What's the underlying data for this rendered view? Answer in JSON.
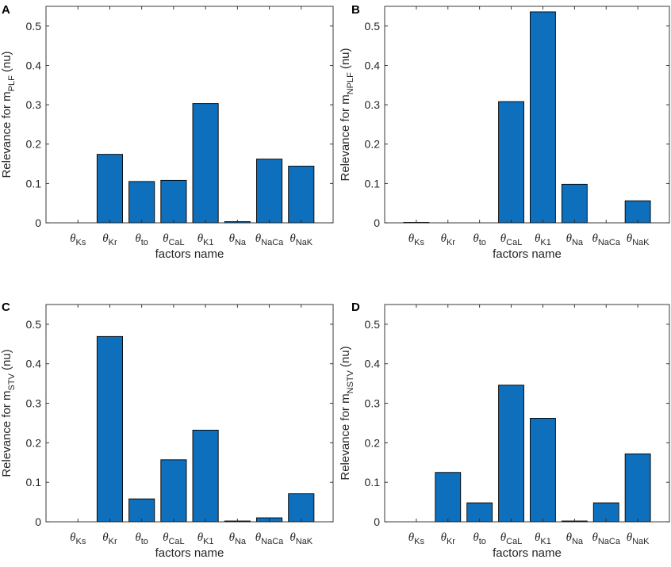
{
  "figure": {
    "panels": [
      "A",
      "B",
      "C",
      "D"
    ]
  },
  "chart_data": [
    {
      "panel": "A",
      "type": "bar",
      "categories": [
        {
          "sym": "θ",
          "sub": "Ks"
        },
        {
          "sym": "θ",
          "sub": "Kr"
        },
        {
          "sym": "θ",
          "sub": "to"
        },
        {
          "sym": "θ",
          "sub": "CaL"
        },
        {
          "sym": "θ",
          "sub": "K1"
        },
        {
          "sym": "θ",
          "sub": "Na"
        },
        {
          "sym": "θ",
          "sub": "NaCa"
        },
        {
          "sym": "θ",
          "sub": "NaK"
        }
      ],
      "values": [
        0.0,
        0.174,
        0.105,
        0.108,
        0.303,
        0.003,
        0.162,
        0.144
      ],
      "xlabel": "factors name",
      "ylabel": {
        "prefix": "Relevance for m",
        "sub": "PLF",
        "suffix": "(nu)"
      },
      "ylim": [
        0,
        0.55
      ],
      "yticks": [
        "0",
        "0.1",
        "0.2",
        "0.3",
        "0.4",
        "0.5"
      ],
      "yticks_values": [
        0,
        0.1,
        0.2,
        0.3,
        0.4,
        0.5
      ],
      "bar_color": "#0e6fbd"
    },
    {
      "panel": "B",
      "type": "bar",
      "categories": [
        {
          "sym": "θ",
          "sub": "Ks"
        },
        {
          "sym": "θ",
          "sub": "Kr"
        },
        {
          "sym": "θ",
          "sub": "to"
        },
        {
          "sym": "θ",
          "sub": "CaL"
        },
        {
          "sym": "θ",
          "sub": "K1"
        },
        {
          "sym": "θ",
          "sub": "Na"
        },
        {
          "sym": "θ",
          "sub": "NaCa"
        },
        {
          "sym": "θ",
          "sub": "NaK"
        }
      ],
      "values": [
        0.001,
        0.0,
        0.0,
        0.308,
        0.536,
        0.098,
        0.0,
        0.056
      ],
      "xlabel": "factors name",
      "ylabel": {
        "prefix": "Relevance for m",
        "sub": "NPLF",
        "suffix": "(nu)"
      },
      "ylim": [
        0,
        0.55
      ],
      "yticks": [
        "0",
        "0.1",
        "0.2",
        "0.3",
        "0.4",
        "0.5"
      ],
      "yticks_values": [
        0,
        0.1,
        0.2,
        0.3,
        0.4,
        0.5
      ],
      "bar_color": "#0e6fbd"
    },
    {
      "panel": "C",
      "type": "bar",
      "categories": [
        {
          "sym": "θ",
          "sub": "Ks"
        },
        {
          "sym": "θ",
          "sub": "Kr"
        },
        {
          "sym": "θ",
          "sub": "to"
        },
        {
          "sym": "θ",
          "sub": "CaL"
        },
        {
          "sym": "θ",
          "sub": "K1"
        },
        {
          "sym": "θ",
          "sub": "Na"
        },
        {
          "sym": "θ",
          "sub": "NaCa"
        },
        {
          "sym": "θ",
          "sub": "NaK"
        }
      ],
      "values": [
        0.0,
        0.469,
        0.058,
        0.157,
        0.232,
        0.002,
        0.01,
        0.071
      ],
      "xlabel": "factors name",
      "ylabel": {
        "prefix": "Relevance for m",
        "sub": "STV",
        "suffix": "(nu)"
      },
      "ylim": [
        0,
        0.55
      ],
      "yticks": [
        "0",
        "0.1",
        "0.2",
        "0.3",
        "0.4",
        "0.5"
      ],
      "yticks_values": [
        0,
        0.1,
        0.2,
        0.3,
        0.4,
        0.5
      ],
      "bar_color": "#0e6fbd"
    },
    {
      "panel": "D",
      "type": "bar",
      "categories": [
        {
          "sym": "θ",
          "sub": "Ks"
        },
        {
          "sym": "θ",
          "sub": "Kr"
        },
        {
          "sym": "θ",
          "sub": "to"
        },
        {
          "sym": "θ",
          "sub": "CaL"
        },
        {
          "sym": "θ",
          "sub": "K1"
        },
        {
          "sym": "θ",
          "sub": "Na"
        },
        {
          "sym": "θ",
          "sub": "NaCa"
        },
        {
          "sym": "θ",
          "sub": "NaK"
        }
      ],
      "values": [
        0.0,
        0.125,
        0.048,
        0.346,
        0.262,
        0.002,
        0.048,
        0.172
      ],
      "xlabel": "factors name",
      "ylabel": {
        "prefix": "Relevance for m",
        "sub": "NSTV",
        "suffix": "(nu)"
      },
      "ylim": [
        0,
        0.55
      ],
      "yticks": [
        "0",
        "0.1",
        "0.2",
        "0.3",
        "0.4",
        "0.5"
      ],
      "yticks_values": [
        0,
        0.1,
        0.2,
        0.3,
        0.4,
        0.5
      ],
      "bar_color": "#0e6fbd"
    }
  ]
}
